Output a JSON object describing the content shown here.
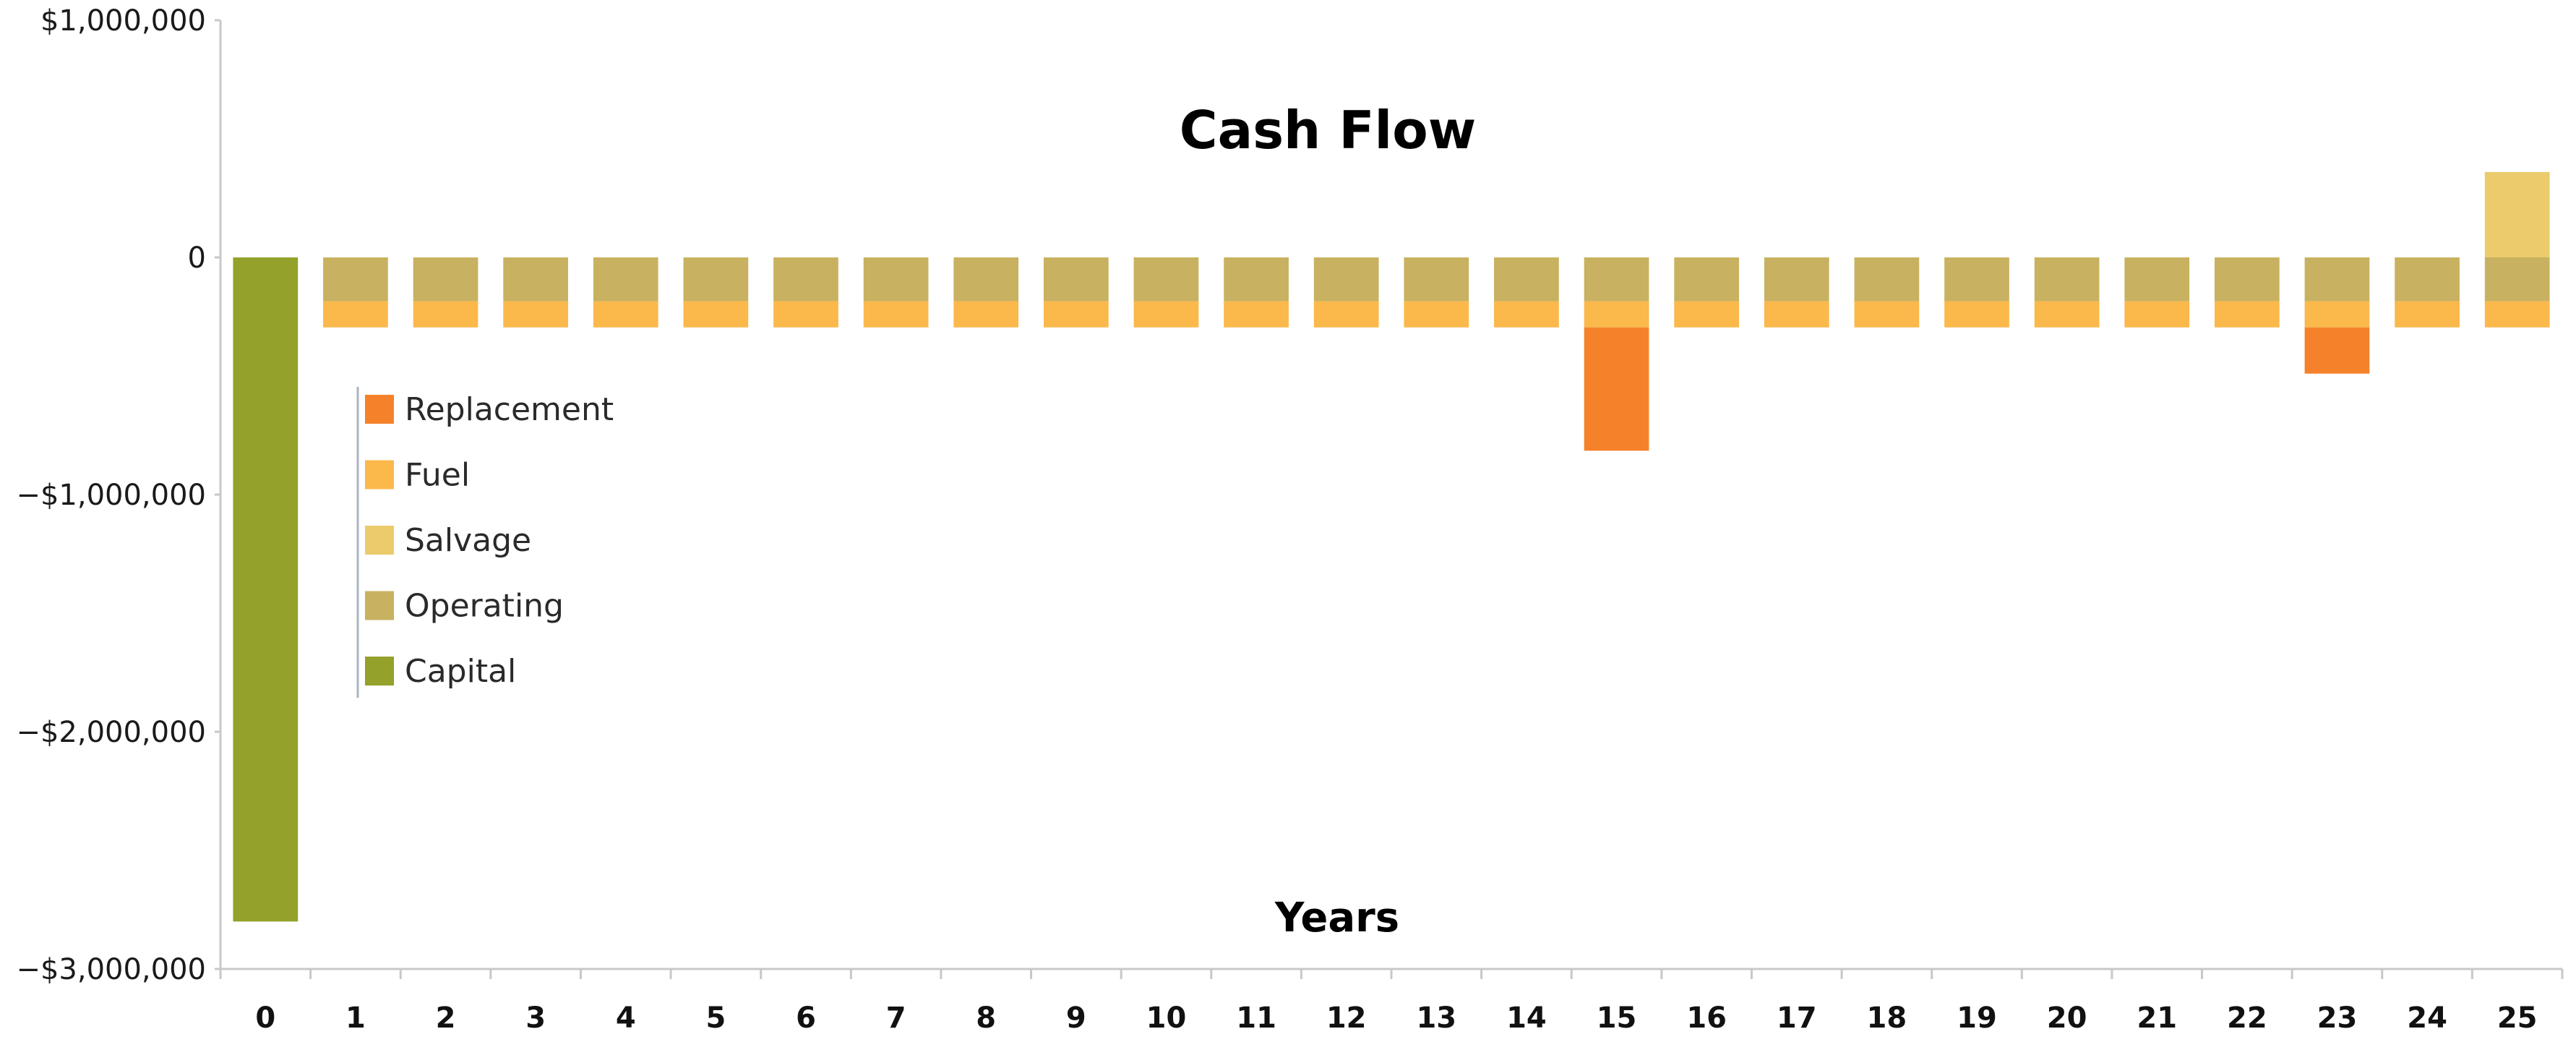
{
  "chart_data": {
    "type": "bar",
    "stacked": true,
    "title": "Cash Flow",
    "xlabel": "Years",
    "ylabel": "",
    "ylim": [
      -3000000,
      1000000
    ],
    "yticks": [
      1000000,
      0,
      -1000000,
      -2000000,
      -3000000
    ],
    "ytick_labels": [
      "$1,000,000",
      "0",
      "−$1,000,000",
      "−$2,000,000",
      "−$3,000,000"
    ],
    "categories": [
      "0",
      "1",
      "2",
      "3",
      "4",
      "5",
      "6",
      "7",
      "8",
      "9",
      "10",
      "11",
      "12",
      "13",
      "14",
      "15",
      "16",
      "17",
      "18",
      "19",
      "20",
      "21",
      "22",
      "23",
      "24",
      "25"
    ],
    "grid": false,
    "legend_position": "left-middle",
    "legend_order": [
      "Replacement",
      "Fuel",
      "Salvage",
      "Operating",
      "Capital"
    ],
    "series": [
      {
        "name": "Capital",
        "color": "#94A12A",
        "values": [
          -2800000,
          0,
          0,
          0,
          0,
          0,
          0,
          0,
          0,
          0,
          0,
          0,
          0,
          0,
          0,
          0,
          0,
          0,
          0,
          0,
          0,
          0,
          0,
          0,
          0,
          0
        ]
      },
      {
        "name": "Operating",
        "color": "#C8B160",
        "values": [
          0,
          -185000,
          -185000,
          -185000,
          -185000,
          -185000,
          -185000,
          -185000,
          -185000,
          -185000,
          -185000,
          -185000,
          -185000,
          -185000,
          -185000,
          -185000,
          -185000,
          -185000,
          -185000,
          -185000,
          -185000,
          -185000,
          -185000,
          -185000,
          -185000,
          -185000
        ]
      },
      {
        "name": "Fuel",
        "color": "#FBB84B",
        "values": [
          0,
          -110000,
          -110000,
          -110000,
          -110000,
          -110000,
          -110000,
          -110000,
          -110000,
          -110000,
          -110000,
          -110000,
          -110000,
          -110000,
          -110000,
          -110000,
          -110000,
          -110000,
          -110000,
          -110000,
          -110000,
          -110000,
          -110000,
          -110000,
          -110000,
          -110000
        ]
      },
      {
        "name": "Replacement",
        "color": "#F5822A",
        "values": [
          0,
          0,
          0,
          0,
          0,
          0,
          0,
          0,
          0,
          0,
          0,
          0,
          0,
          0,
          0,
          -520000,
          0,
          0,
          0,
          0,
          0,
          0,
          0,
          -195000,
          0,
          0
        ]
      },
      {
        "name": "Salvage",
        "color": "#EBCB6C",
        "values": [
          0,
          0,
          0,
          0,
          0,
          0,
          0,
          0,
          0,
          0,
          0,
          0,
          0,
          0,
          0,
          0,
          0,
          0,
          0,
          0,
          0,
          0,
          0,
          0,
          0,
          360000
        ]
      }
    ]
  }
}
